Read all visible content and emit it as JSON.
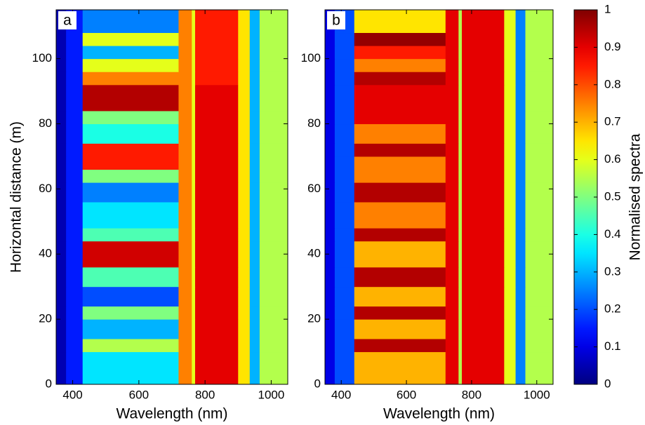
{
  "chart_data": [
    {
      "type": "heatmap",
      "panel_label": "a",
      "xlabel": "Wavelength (nm)",
      "ylabel": "Horizontal distance (m)",
      "xlim": [
        350,
        1050
      ],
      "ylim": [
        0,
        115
      ],
      "xticks": [
        400,
        600,
        800,
        1000
      ],
      "yticks": [
        0,
        20,
        40,
        60,
        80,
        100
      ],
      "x_edges": [
        350,
        380,
        430,
        720,
        760,
        770,
        900,
        935,
        965,
        1050
      ],
      "y_edges": [
        0,
        10,
        14,
        20,
        24,
        30,
        36,
        44,
        48,
        56,
        62,
        66,
        70,
        74,
        80,
        84,
        92,
        96,
        100,
        104,
        108,
        115
      ],
      "z": [
        [
          0.05,
          0.15,
          0.35,
          0.75,
          0.6,
          0.9,
          0.65,
          0.3,
          0.55
        ],
        [
          0.05,
          0.15,
          0.55,
          0.75,
          0.6,
          0.9,
          0.65,
          0.3,
          0.55
        ],
        [
          0.05,
          0.15,
          0.3,
          0.75,
          0.6,
          0.9,
          0.65,
          0.3,
          0.55
        ],
        [
          0.05,
          0.15,
          0.5,
          0.75,
          0.6,
          0.9,
          0.65,
          0.3,
          0.55
        ],
        [
          0.05,
          0.15,
          0.2,
          0.75,
          0.6,
          0.9,
          0.65,
          0.3,
          0.55
        ],
        [
          0.05,
          0.15,
          0.45,
          0.75,
          0.6,
          0.9,
          0.65,
          0.3,
          0.55
        ],
        [
          0.05,
          0.15,
          0.92,
          0.75,
          0.6,
          0.9,
          0.65,
          0.3,
          0.55
        ],
        [
          0.05,
          0.15,
          0.45,
          0.75,
          0.6,
          0.9,
          0.65,
          0.3,
          0.55
        ],
        [
          0.05,
          0.15,
          0.35,
          0.75,
          0.6,
          0.9,
          0.65,
          0.3,
          0.55
        ],
        [
          0.05,
          0.15,
          0.25,
          0.75,
          0.6,
          0.9,
          0.65,
          0.3,
          0.55
        ],
        [
          0.05,
          0.15,
          0.5,
          0.75,
          0.6,
          0.9,
          0.65,
          0.3,
          0.55
        ],
        [
          0.05,
          0.15,
          0.85,
          0.75,
          0.6,
          0.9,
          0.65,
          0.3,
          0.55
        ],
        [
          0.05,
          0.15,
          0.85,
          0.75,
          0.6,
          0.9,
          0.65,
          0.3,
          0.55
        ],
        [
          0.05,
          0.15,
          0.4,
          0.75,
          0.6,
          0.9,
          0.65,
          0.3,
          0.55
        ],
        [
          0.05,
          0.15,
          0.5,
          0.75,
          0.6,
          0.9,
          0.65,
          0.3,
          0.55
        ],
        [
          0.05,
          0.15,
          0.95,
          0.75,
          0.6,
          0.9,
          0.65,
          0.3,
          0.55
        ],
        [
          0.05,
          0.15,
          0.75,
          0.75,
          0.6,
          0.85,
          0.65,
          0.3,
          0.55
        ],
        [
          0.05,
          0.15,
          0.6,
          0.75,
          0.6,
          0.85,
          0.65,
          0.3,
          0.55
        ],
        [
          0.05,
          0.15,
          0.3,
          0.75,
          0.6,
          0.85,
          0.65,
          0.3,
          0.55
        ],
        [
          0.05,
          0.15,
          0.6,
          0.75,
          0.6,
          0.85,
          0.65,
          0.3,
          0.55
        ],
        [
          0.05,
          0.15,
          0.25,
          0.75,
          0.6,
          0.85,
          0.65,
          0.3,
          0.55
        ]
      ]
    },
    {
      "type": "heatmap",
      "panel_label": "b",
      "xlabel": "Wavelength (nm)",
      "xlim": [
        350,
        1050
      ],
      "ylim": [
        0,
        115
      ],
      "xticks": [
        400,
        600,
        800,
        1000
      ],
      "yticks": [
        0,
        20,
        40,
        60,
        80,
        100
      ],
      "x_edges": [
        350,
        380,
        440,
        720,
        760,
        770,
        900,
        935,
        965,
        1050
      ],
      "y_edges": [
        0,
        10,
        14,
        20,
        24,
        30,
        36,
        44,
        48,
        56,
        62,
        66,
        70,
        74,
        80,
        84,
        92,
        96,
        100,
        104,
        108,
        115
      ],
      "z": [
        [
          0.1,
          0.2,
          0.7,
          0.9,
          0.55,
          0.9,
          0.6,
          0.25,
          0.55
        ],
        [
          0.1,
          0.2,
          0.95,
          0.9,
          0.55,
          0.9,
          0.6,
          0.25,
          0.55
        ],
        [
          0.1,
          0.2,
          0.7,
          0.9,
          0.55,
          0.9,
          0.6,
          0.25,
          0.55
        ],
        [
          0.1,
          0.2,
          0.95,
          0.9,
          0.55,
          0.9,
          0.6,
          0.25,
          0.55
        ],
        [
          0.1,
          0.2,
          0.7,
          0.9,
          0.55,
          0.9,
          0.6,
          0.25,
          0.55
        ],
        [
          0.1,
          0.2,
          0.95,
          0.9,
          0.55,
          0.9,
          0.6,
          0.25,
          0.55
        ],
        [
          0.1,
          0.2,
          0.7,
          0.9,
          0.55,
          0.9,
          0.6,
          0.25,
          0.55
        ],
        [
          0.1,
          0.2,
          0.95,
          0.9,
          0.55,
          0.9,
          0.6,
          0.25,
          0.55
        ],
        [
          0.1,
          0.2,
          0.75,
          0.9,
          0.55,
          0.9,
          0.6,
          0.25,
          0.55
        ],
        [
          0.1,
          0.2,
          0.95,
          0.9,
          0.55,
          0.9,
          0.6,
          0.25,
          0.55
        ],
        [
          0.1,
          0.2,
          0.75,
          0.9,
          0.55,
          0.9,
          0.6,
          0.25,
          0.55
        ],
        [
          0.1,
          0.2,
          0.75,
          0.9,
          0.55,
          0.9,
          0.6,
          0.25,
          0.55
        ],
        [
          0.1,
          0.2,
          0.95,
          0.9,
          0.55,
          0.9,
          0.6,
          0.25,
          0.55
        ],
        [
          0.1,
          0.2,
          0.75,
          0.9,
          0.55,
          0.9,
          0.6,
          0.25,
          0.55
        ],
        [
          0.1,
          0.2,
          0.9,
          0.9,
          0.55,
          0.9,
          0.6,
          0.25,
          0.55
        ],
        [
          0.1,
          0.2,
          0.9,
          0.9,
          0.55,
          0.9,
          0.6,
          0.25,
          0.55
        ],
        [
          0.1,
          0.2,
          0.95,
          0.9,
          0.55,
          0.9,
          0.6,
          0.25,
          0.55
        ],
        [
          0.1,
          0.2,
          0.75,
          0.9,
          0.55,
          0.9,
          0.6,
          0.25,
          0.55
        ],
        [
          0.1,
          0.2,
          0.85,
          0.9,
          0.55,
          0.9,
          0.6,
          0.25,
          0.55
        ],
        [
          0.1,
          0.2,
          0.98,
          0.9,
          0.55,
          0.9,
          0.6,
          0.25,
          0.55
        ],
        [
          0.1,
          0.2,
          0.65,
          0.9,
          0.55,
          0.9,
          0.6,
          0.25,
          0.55
        ]
      ]
    }
  ],
  "colorbar": {
    "label": "Normalised spectra",
    "colormap": "jet",
    "clim": [
      0,
      1
    ],
    "ticks": [
      0,
      0.1,
      0.2,
      0.3,
      0.4,
      0.5,
      0.6,
      0.7,
      0.8,
      0.9,
      1
    ]
  }
}
